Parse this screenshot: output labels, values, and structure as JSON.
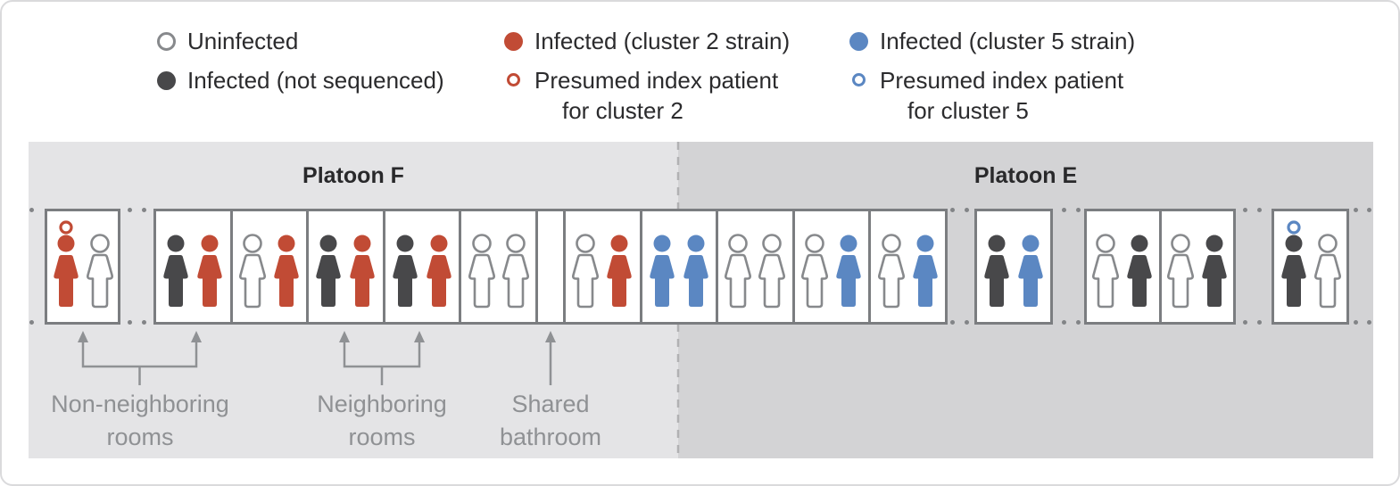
{
  "figure": {
    "legend": {
      "columns": [
        {
          "items": [
            {
              "marker": "open-gray-circle",
              "label": "Uninfected"
            },
            {
              "marker": "filled-dark-circle",
              "label": "Infected (not sequenced)"
            }
          ]
        },
        {
          "items": [
            {
              "marker": "filled-red-circle",
              "label": "Infected (cluster 2 strain)"
            },
            {
              "marker": "open-red-circle",
              "label": "Presumed index patient",
              "label2": "for cluster 2"
            }
          ]
        },
        {
          "items": [
            {
              "marker": "filled-blue-circle",
              "label": "Infected (cluster 5 strain)"
            },
            {
              "marker": "open-blue-circle",
              "label": "Presumed index patient",
              "label2": "for cluster 5"
            }
          ]
        }
      ]
    },
    "platoons": [
      {
        "label": "Platoon F"
      },
      {
        "label": "Platoon E"
      }
    ],
    "rooms": [
      {
        "id": 1,
        "platoon": "F",
        "type": "room",
        "occupants": [
          {
            "state": "cluster2",
            "ring": "cluster2"
          },
          {
            "state": "uninfected"
          }
        ]
      },
      {
        "id": 2,
        "platoon": "F",
        "type": "room",
        "occupants": [
          {
            "state": "not_sequenced"
          },
          {
            "state": "cluster2"
          }
        ]
      },
      {
        "id": 3,
        "platoon": "F",
        "type": "room",
        "occupants": [
          {
            "state": "uninfected"
          },
          {
            "state": "cluster2"
          }
        ]
      },
      {
        "id": 4,
        "platoon": "F",
        "type": "room",
        "occupants": [
          {
            "state": "not_sequenced"
          },
          {
            "state": "cluster2"
          }
        ]
      },
      {
        "id": 5,
        "platoon": "F",
        "type": "room",
        "occupants": [
          {
            "state": "not_sequenced"
          },
          {
            "state": "cluster2"
          }
        ]
      },
      {
        "id": 6,
        "platoon": "F",
        "type": "room",
        "occupants": [
          {
            "state": "uninfected"
          },
          {
            "state": "uninfected"
          }
        ]
      },
      {
        "id": 7,
        "platoon": "F",
        "type": "bathroom",
        "occupants": []
      },
      {
        "id": 8,
        "platoon": "F",
        "type": "room",
        "occupants": [
          {
            "state": "uninfected"
          },
          {
            "state": "cluster2"
          }
        ]
      },
      {
        "id": 9,
        "platoon": "F/E",
        "type": "room",
        "occupants": [
          {
            "state": "cluster5"
          },
          {
            "state": "cluster5"
          }
        ]
      },
      {
        "id": 10,
        "platoon": "E",
        "type": "room",
        "occupants": [
          {
            "state": "uninfected"
          },
          {
            "state": "uninfected"
          }
        ]
      },
      {
        "id": 11,
        "platoon": "E",
        "type": "room",
        "occupants": [
          {
            "state": "uninfected"
          },
          {
            "state": "cluster5"
          }
        ]
      },
      {
        "id": 12,
        "platoon": "E",
        "type": "room",
        "occupants": [
          {
            "state": "uninfected"
          },
          {
            "state": "cluster5"
          }
        ]
      },
      {
        "id": 13,
        "platoon": "E",
        "type": "room",
        "occupants": [
          {
            "state": "not_sequenced"
          },
          {
            "state": "cluster5"
          }
        ]
      },
      {
        "id": 14,
        "platoon": "E",
        "type": "room",
        "occupants": [
          {
            "state": "uninfected"
          },
          {
            "state": "not_sequenced"
          }
        ]
      },
      {
        "id": 15,
        "platoon": "E",
        "type": "room",
        "occupants": [
          {
            "state": "uninfected"
          },
          {
            "state": "not_sequenced"
          }
        ]
      },
      {
        "id": 16,
        "platoon": "E",
        "type": "room",
        "occupants": [
          {
            "state": "not_sequenced",
            "ring": "cluster5"
          },
          {
            "state": "uninfected"
          }
        ]
      }
    ],
    "annotations": {
      "non_neighboring": {
        "line1": "Non-neighboring",
        "line2": "rooms"
      },
      "neighboring": {
        "line1": "Neighboring",
        "line2": "rooms"
      },
      "shared_bathroom": {
        "line1": "Shared",
        "line2": "bathroom"
      }
    },
    "colors": {
      "cluster2": "#c14b35",
      "cluster5": "#5b87c2",
      "not_sequenced": "#48484a",
      "outline": "#87898c",
      "room_border": "#7b7d80",
      "platoon_f_bg": "#e4e4e6",
      "platoon_e_bg": "#d3d3d5",
      "divider": "#b1b1b3",
      "annotation": "#8f9194",
      "legend_text": "#2b2b2d"
    }
  }
}
